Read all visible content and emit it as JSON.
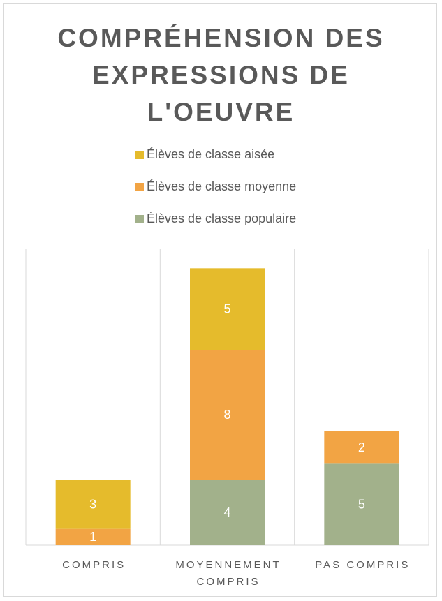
{
  "chart_data": {
    "type": "stacked_bar",
    "title": "COMPRÉHENSION DES EXPRESSIONS DE L'OEUVRE",
    "categories": [
      "COMPRIS",
      "MOYENNEMENT COMPRIS",
      "PAS COMPRIS"
    ],
    "series": [
      {
        "name": "Élèves de classe populaire",
        "color": "#a2b18b",
        "values": [
          0,
          4,
          5
        ]
      },
      {
        "name": "Élèves de classe moyenne",
        "color": "#f2a444",
        "values": [
          1,
          8,
          2
        ]
      },
      {
        "name": "Élèves de classe aisée",
        "color": "#e5bb2c",
        "values": [
          3,
          5,
          0
        ]
      }
    ],
    "ylim": [
      0,
      18
    ]
  }
}
